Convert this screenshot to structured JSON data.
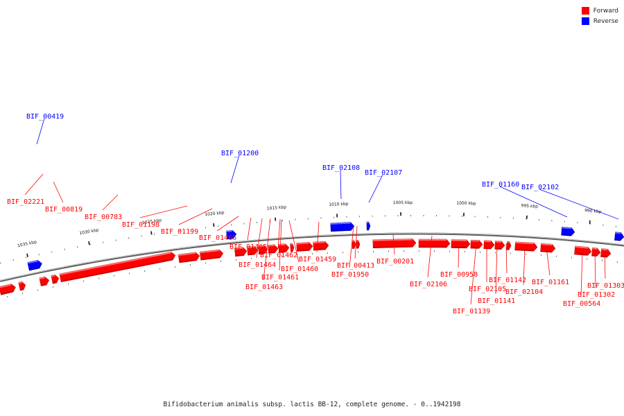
{
  "legend": {
    "items": [
      {
        "label": "Forward",
        "color": "#ff0000"
      },
      {
        "label": "Reverse",
        "color": "#0000ff"
      }
    ]
  },
  "caption": "Bifidobacterium animalis subsp. lactis BB-12, complete genome. - 0..1942198",
  "colors": {
    "forward": "#ff0000",
    "reverse": "#0000ff",
    "backbone": "#808080"
  },
  "ticks": [
    "1035 kbp",
    "1030 kbp",
    "1025 kbp",
    "1020 kbp",
    "1015 kbp",
    "1010 kbp",
    "1005 kbp",
    "1000 kbp",
    "995 kbp",
    "990 kbp"
  ],
  "genes": [
    {
      "id": "BIF_02221",
      "strand": "forward"
    },
    {
      "id": "BIF_00819",
      "strand": "forward"
    },
    {
      "id": "BIF_00783",
      "strand": "forward"
    },
    {
      "id": "BIF_01198",
      "strand": "forward"
    },
    {
      "id": "BIF_01199",
      "strand": "forward"
    },
    {
      "id": "BIF_01466",
      "strand": "forward"
    },
    {
      "id": "BIF_01465",
      "strand": "forward"
    },
    {
      "id": "BIF_01464",
      "strand": "forward"
    },
    {
      "id": "BIF_01462",
      "strand": "forward"
    },
    {
      "id": "BIF_01463",
      "strand": "forward"
    },
    {
      "id": "BIF_01461",
      "strand": "forward"
    },
    {
      "id": "BIF_01460",
      "strand": "forward"
    },
    {
      "id": "BIF_01459",
      "strand": "forward"
    },
    {
      "id": "BIF_00413",
      "strand": "forward"
    },
    {
      "id": "BIF_01950",
      "strand": "forward"
    },
    {
      "id": "BIF_00201",
      "strand": "forward"
    },
    {
      "id": "BIF_02106",
      "strand": "forward"
    },
    {
      "id": "BIF_00958",
      "strand": "forward"
    },
    {
      "id": "BIF_02105",
      "strand": "forward"
    },
    {
      "id": "BIF_01139",
      "strand": "forward"
    },
    {
      "id": "BIF_01141",
      "strand": "forward"
    },
    {
      "id": "BIF_01142",
      "strand": "forward"
    },
    {
      "id": "BIF_02104",
      "strand": "forward"
    },
    {
      "id": "BIF_01161",
      "strand": "forward"
    },
    {
      "id": "BIF_00564",
      "strand": "forward"
    },
    {
      "id": "BIF_01302",
      "strand": "forward"
    },
    {
      "id": "BIF_01303",
      "strand": "forward"
    },
    {
      "id": "BIF_00419",
      "strand": "reverse"
    },
    {
      "id": "BIF_01200",
      "strand": "reverse"
    },
    {
      "id": "BIF_02108",
      "strand": "reverse"
    },
    {
      "id": "BIF_02107",
      "strand": "reverse"
    },
    {
      "id": "BIF_01160",
      "strand": "reverse"
    },
    {
      "id": "BIF_02102",
      "strand": "reverse"
    }
  ]
}
